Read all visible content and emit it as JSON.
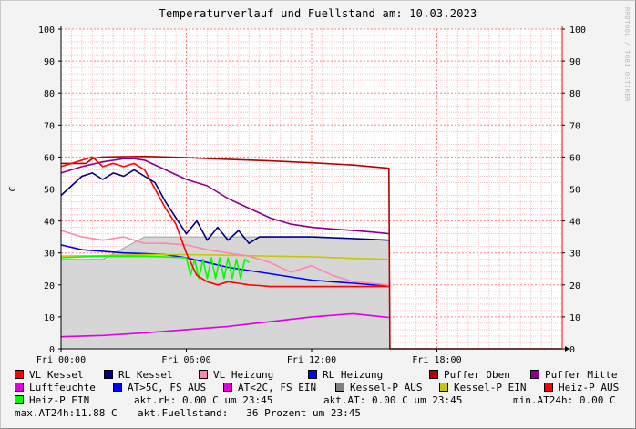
{
  "title": "Temperaturverlauf und Fuellstand am: 10.03.2023",
  "watermark": "RRDTOOL / TOBI OETIKER",
  "chart_data": {
    "type": "line",
    "title": "Temperaturverlauf und Fuellstand am: 10.03.2023",
    "ylabel": "C",
    "xlabel": "",
    "ylim": [
      0,
      100
    ],
    "xlim": [
      0,
      24
    ],
    "x_unit": "hours since Fri 00:00",
    "y_ticks": [
      0,
      10,
      20,
      30,
      40,
      50,
      60,
      70,
      80,
      90,
      100
    ],
    "x_ticks": [
      {
        "x": 0,
        "label": "Fri 00:00"
      },
      {
        "x": 6,
        "label": "Fri 06:00"
      },
      {
        "x": 12,
        "label": "Fri 12:00"
      },
      {
        "x": 18,
        "label": "Fri 18:00"
      }
    ],
    "grid": true,
    "series": [
      {
        "name": "Kessel-P AUS",
        "kind": "area",
        "color": "#b4b4b4",
        "x": [
          0,
          2,
          4,
          6,
          8,
          10,
          12,
          14,
          15.7,
          15.75,
          24
        ],
        "y": [
          28,
          28,
          35,
          35,
          35,
          35,
          35,
          34.5,
          34,
          0,
          0
        ]
      },
      {
        "name": "Puffer Oben",
        "color": "#b40000",
        "x": [
          0,
          1.2,
          1.5,
          2,
          4,
          6,
          8,
          10,
          12,
          14,
          15.7,
          15.75,
          24
        ],
        "y": [
          58,
          58,
          59.5,
          60,
          60.2,
          59.8,
          59.3,
          58.8,
          58.2,
          57.5,
          56.5,
          0,
          0
        ]
      },
      {
        "name": "Puffer Mitte",
        "color": "#8a008a",
        "x": [
          0,
          1,
          2,
          3,
          3.5,
          4,
          5,
          6,
          7,
          8,
          9,
          10,
          11,
          12,
          13,
          14,
          15,
          15.7
        ],
        "y": [
          55,
          57,
          58.5,
          59.5,
          59.5,
          59,
          56,
          53,
          51,
          47,
          44,
          41,
          39,
          38,
          37.5,
          37,
          36.5,
          36
        ]
      },
      {
        "name": "RL Heizung",
        "color": "#0000ff",
        "x": [
          0,
          1,
          2,
          3,
          4,
          5,
          6,
          7,
          8,
          9,
          10,
          11,
          12,
          13,
          14,
          15,
          15.7
        ],
        "y": [
          32.5,
          31,
          30.5,
          30,
          29.8,
          29.5,
          28.5,
          27,
          25.5,
          24.5,
          23.5,
          22.5,
          21.5,
          21,
          20.5,
          20,
          20
        ]
      },
      {
        "name": "Kessel-P EIN",
        "color": "#c8c800",
        "x": [
          0,
          2,
          4,
          6,
          8,
          10,
          12,
          14,
          15.7
        ],
        "y": [
          29,
          29.2,
          29.5,
          29.5,
          29.3,
          29,
          28.8,
          28.3,
          28
        ]
      },
      {
        "name": "Heiz-P EIN",
        "color": "#00ff00",
        "x": [
          0,
          2,
          4,
          6,
          6.2,
          6.4,
          6.6,
          6.8,
          7.0,
          7.2,
          7.4,
          7.6,
          7.8,
          8.0,
          8.2,
          8.4,
          8.6,
          8.8,
          9.0
        ],
        "y": [
          28.5,
          29,
          29,
          28.5,
          23,
          28,
          22,
          28,
          22,
          28.5,
          22,
          28.5,
          22,
          28.5,
          22,
          28,
          22,
          28,
          27
        ]
      },
      {
        "name": "VL Heizung",
        "color": "#ff88aa",
        "x": [
          0,
          1,
          2,
          3,
          4,
          5,
          6,
          7,
          8,
          9,
          10,
          11,
          12,
          13,
          14,
          15.7
        ],
        "y": [
          37,
          35,
          34,
          35,
          33,
          33,
          32.5,
          31,
          30,
          29,
          27,
          24,
          26,
          23,
          21,
          20
        ]
      },
      {
        "name": "VL Kessel",
        "color": "#ff0000",
        "x": [
          0,
          0.5,
          1,
          1.5,
          2,
          2.5,
          3,
          3.5,
          4,
          4.5,
          5,
          5.5,
          6,
          6.5,
          7,
          7.5,
          8,
          8.5,
          9,
          9.5,
          10,
          12,
          14,
          15.7
        ],
        "y": [
          57,
          58,
          59,
          60,
          57,
          58,
          57,
          58,
          56,
          50,
          44,
          39,
          30,
          23,
          21,
          20,
          21,
          20.5,
          20,
          19.8,
          19.5,
          19.5,
          19.5,
          19.5
        ]
      },
      {
        "name": "RL Kessel",
        "color": "#000080",
        "x": [
          0,
          0.5,
          1,
          1.5,
          2,
          2.5,
          3,
          3.5,
          4,
          4.5,
          5,
          5.5,
          6,
          6.5,
          7,
          7.5,
          8,
          8.5,
          9,
          9.5,
          10,
          12,
          14,
          15.7
        ],
        "y": [
          48,
          51,
          54,
          55,
          53,
          55,
          54,
          56,
          54,
          52,
          46,
          41,
          36,
          40,
          34,
          38,
          34,
          37,
          33,
          35,
          35,
          35,
          34.5,
          34
        ]
      },
      {
        "name": "Luftfeuchte",
        "color": "#e000e0",
        "x": [
          0,
          2,
          4,
          6,
          8,
          10,
          12,
          14,
          15.7
        ],
        "y": [
          3.8,
          4.2,
          5,
          6,
          7,
          8.5,
          10,
          11,
          9.8
        ]
      },
      {
        "name": "RL Kessel dim",
        "legend": false,
        "color": "#1010cc",
        "x": [
          0,
          15.7
        ],
        "y": [
          0,
          0
        ]
      }
    ]
  },
  "legend": {
    "row1": [
      {
        "label": "VL Kessel",
        "color": "#ff0000"
      },
      {
        "label": "RL Kessel",
        "color": "#000080"
      },
      {
        "label": "VL Heizung",
        "color": "#ff88aa"
      },
      {
        "label": "RL Heizung",
        "color": "#0000ff"
      },
      {
        "label": "Puffer Oben",
        "color": "#b40000"
      },
      {
        "label": "Puffer Mitte",
        "color": "#8a008a"
      }
    ],
    "row2": [
      {
        "label": "Luftfeuchte",
        "color": "#e000e0"
      },
      {
        "label": "AT>5C, FS AUS",
        "color": "#0000ff"
      },
      {
        "label": "AT<2C, FS EIN",
        "color": "#e000e0"
      },
      {
        "label": "Kessel-P AUS",
        "color": "#808080"
      },
      {
        "label": "Kessel-P EIN",
        "color": "#c8c800"
      },
      {
        "label": "Heiz-P AUS",
        "color": "#ff0000"
      }
    ],
    "row3_swatch": {
      "label": "Heiz-P EIN",
      "color": "#00ff00"
    }
  },
  "info": {
    "rh": "akt.rH: 0.00 C um 23:45",
    "at": "akt.AT: 0.00 C um 23:45",
    "min24": "min.AT24h: 0.00 C",
    "max24": "max.AT24h:11.88 C",
    "fuell": "akt.Fuellstand:   36 Prozent um 23:45"
  }
}
